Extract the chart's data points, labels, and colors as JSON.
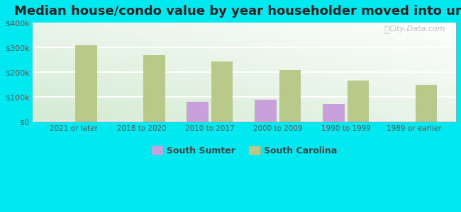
{
  "title": "Median house/condo value by year householder moved into unit",
  "categories": [
    "2021 or later",
    "2018 to 2020",
    "2010 to 2017",
    "2000 to 2009",
    "1990 to 1999",
    "1989 or earlier"
  ],
  "south_sumter": [
    null,
    null,
    82000,
    90000,
    72000,
    null
  ],
  "south_carolina": [
    308000,
    270000,
    243000,
    210000,
    165000,
    148000
  ],
  "bar_color_sumter": "#c9a0dc",
  "bar_color_sc": "#b8c98a",
  "background_outer": "#00e8f0",
  "ylim": [
    0,
    400000
  ],
  "yticks": [
    0,
    100000,
    200000,
    300000,
    400000
  ],
  "ytick_labels": [
    "$0",
    "$100k",
    "$200k",
    "$300k",
    "$400k"
  ],
  "legend_labels": [
    "South Sumter",
    "South Carolina"
  ],
  "watermark": "City-Data.com",
  "bar_width": 0.32,
  "title_fontsize": 13,
  "bar_gap": 0.04
}
